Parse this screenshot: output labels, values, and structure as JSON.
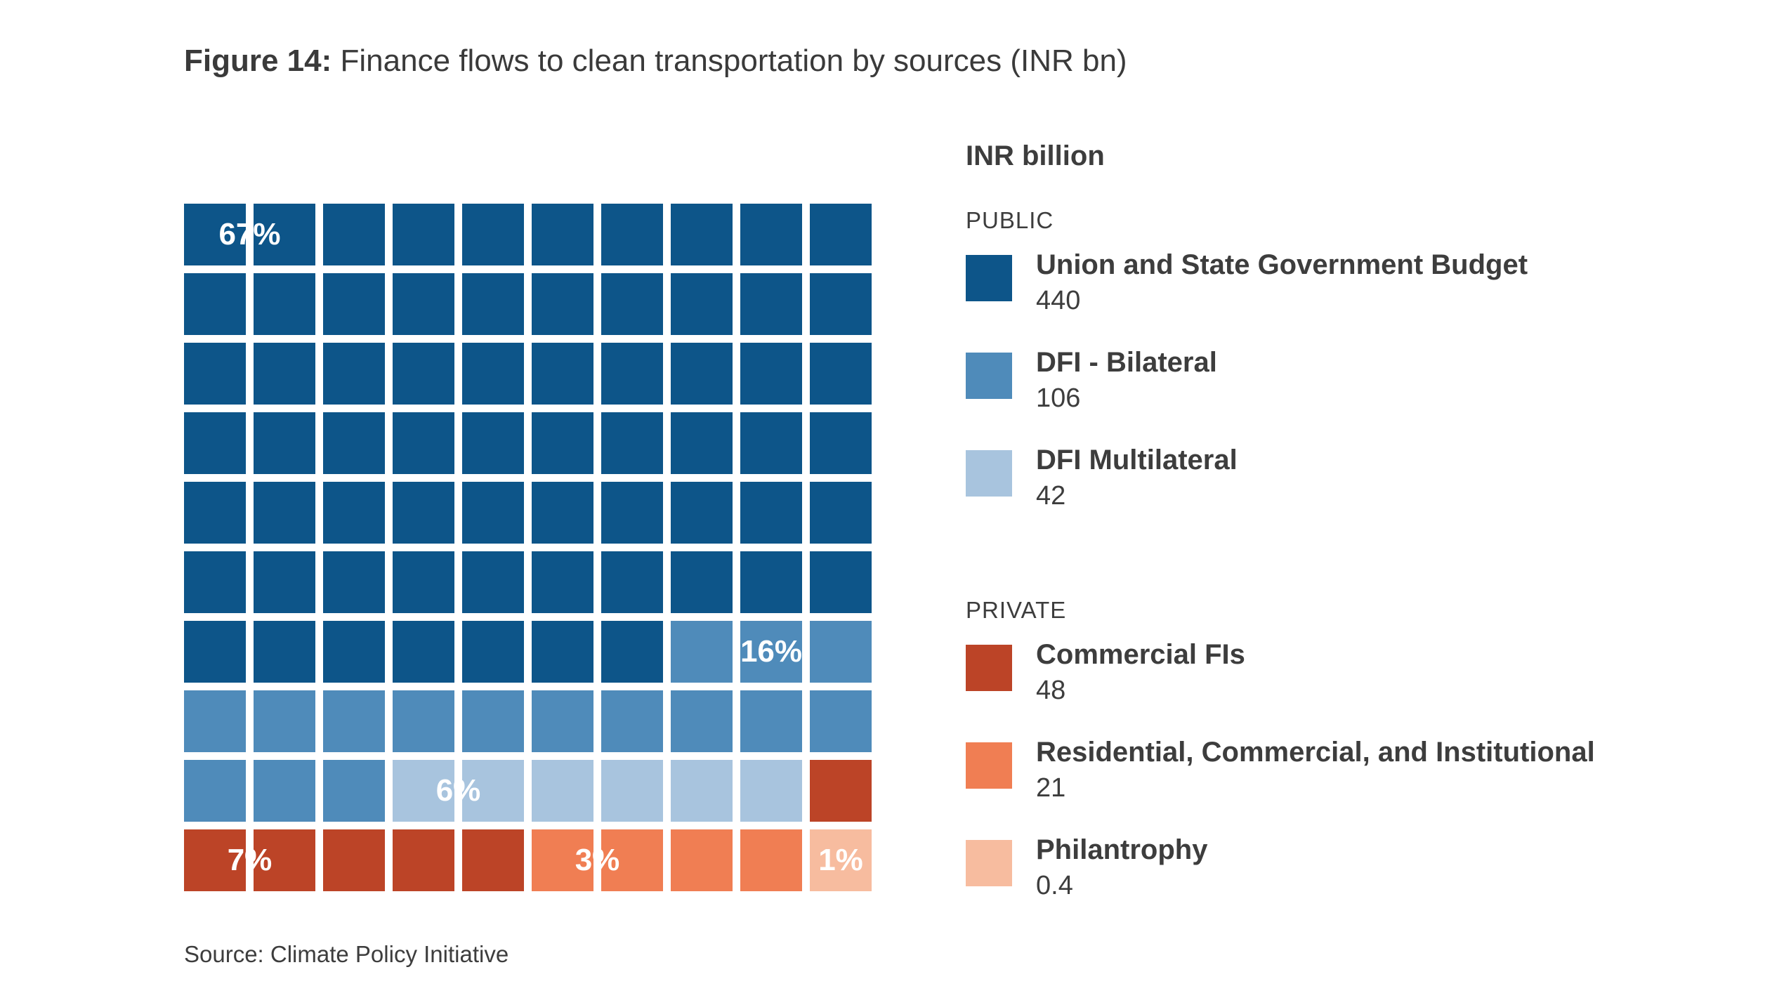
{
  "title": {
    "bold": "Figure 14:",
    "text": "Finance flows to clean transportation by sources (INR bn)"
  },
  "source": "Source: Climate Policy Initiative",
  "legend": {
    "units": "INR billion",
    "groups": [
      {
        "label": "PUBLIC",
        "items": [
          {
            "name": "Union and State Government Budget",
            "value": "440",
            "color": "#0d5589"
          },
          {
            "name": "DFI - Bilateral",
            "value": "106",
            "color": "#4f8bba"
          },
          {
            "name": "DFI Multilateral",
            "value": "42",
            "color": "#a8c4de"
          }
        ]
      },
      {
        "label": "PRIVATE",
        "items": [
          {
            "name": "Commercial FIs",
            "value": "48",
            "color": "#bc4427"
          },
          {
            "name": "Residential, Commercial, and Institutional",
            "value": "21",
            "color": "#f07e53"
          },
          {
            "name": "Philantrophy",
            "value": "0.4",
            "color": "#f7bc9f"
          }
        ]
      }
    ]
  },
  "chart_data": {
    "type": "waffle",
    "grid": {
      "rows": 10,
      "cols": 10
    },
    "categories": [
      "Union and State Government Budget",
      "DFI - Bilateral",
      "DFI Multilateral",
      "Commercial FIs",
      "Residential, Commercial, and Institutional",
      "Philantrophy"
    ],
    "values": [
      440,
      106,
      42,
      48,
      21,
      0.4
    ],
    "units": "INR billion",
    "percent_labels": [
      "67%",
      "16%",
      "6%",
      "7%",
      "3%",
      "1%"
    ],
    "colors": [
      "#0d5589",
      "#4f8bba",
      "#a8c4de",
      "#bc4427",
      "#f07e53",
      "#f7bc9f"
    ],
    "cells": [
      [
        "#0d5589",
        "#0d5589",
        "#0d5589",
        "#0d5589",
        "#0d5589",
        "#0d5589",
        "#0d5589",
        "#0d5589",
        "#0d5589",
        "#0d5589"
      ],
      [
        "#0d5589",
        "#0d5589",
        "#0d5589",
        "#0d5589",
        "#0d5589",
        "#0d5589",
        "#0d5589",
        "#0d5589",
        "#0d5589",
        "#0d5589"
      ],
      [
        "#0d5589",
        "#0d5589",
        "#0d5589",
        "#0d5589",
        "#0d5589",
        "#0d5589",
        "#0d5589",
        "#0d5589",
        "#0d5589",
        "#0d5589"
      ],
      [
        "#0d5589",
        "#0d5589",
        "#0d5589",
        "#0d5589",
        "#0d5589",
        "#0d5589",
        "#0d5589",
        "#0d5589",
        "#0d5589",
        "#0d5589"
      ],
      [
        "#0d5589",
        "#0d5589",
        "#0d5589",
        "#0d5589",
        "#0d5589",
        "#0d5589",
        "#0d5589",
        "#0d5589",
        "#0d5589",
        "#0d5589"
      ],
      [
        "#0d5589",
        "#0d5589",
        "#0d5589",
        "#0d5589",
        "#0d5589",
        "#0d5589",
        "#0d5589",
        "#0d5589",
        "#0d5589",
        "#0d5589"
      ],
      [
        "#0d5589",
        "#0d5589",
        "#0d5589",
        "#0d5589",
        "#0d5589",
        "#0d5589",
        "#0d5589",
        "#4f8bba",
        "#4f8bba",
        "#4f8bba"
      ],
      [
        "#4f8bba",
        "#4f8bba",
        "#4f8bba",
        "#4f8bba",
        "#4f8bba",
        "#4f8bba",
        "#4f8bba",
        "#4f8bba",
        "#4f8bba",
        "#4f8bba"
      ],
      [
        "#4f8bba",
        "#4f8bba",
        "#4f8bba",
        "#a8c4de",
        "#a8c4de",
        "#a8c4de",
        "#a8c4de",
        "#a8c4de",
        "#a8c4de",
        "#bc4427"
      ],
      [
        "#bc4427",
        "#bc4427",
        "#bc4427",
        "#bc4427",
        "#bc4427",
        "#f07e53",
        "#f07e53",
        "#f07e53",
        "#f07e53",
        "#f7bc9f"
      ]
    ]
  }
}
